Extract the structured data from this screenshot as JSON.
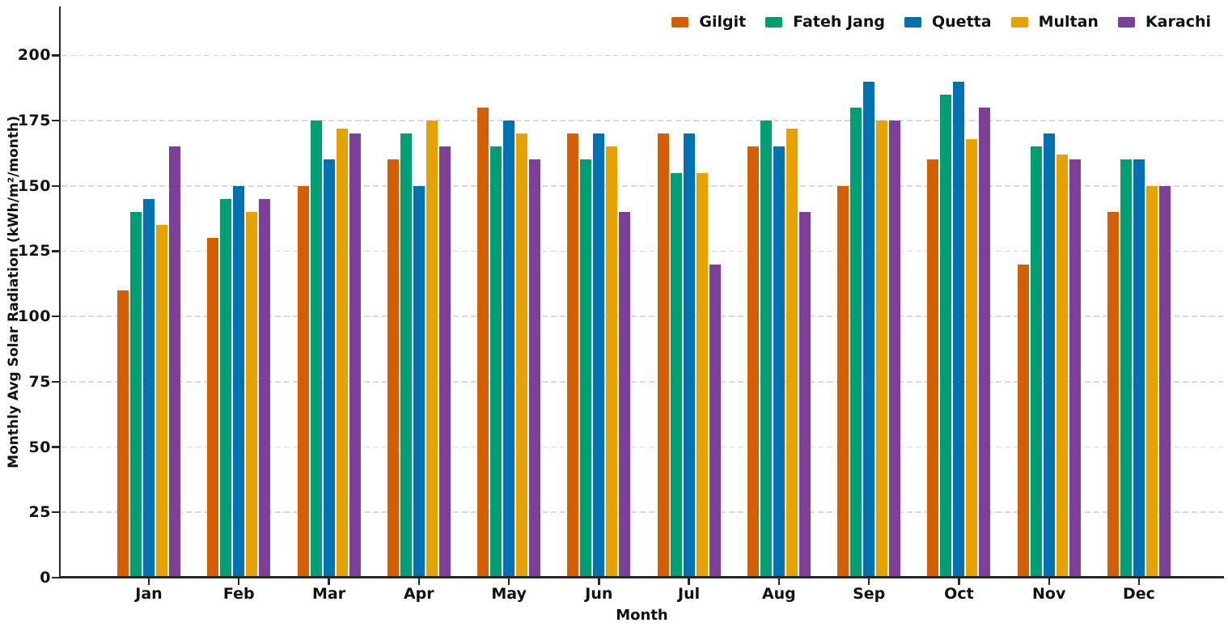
{
  "chart_data": {
    "type": "bar",
    "title": "",
    "xlabel": "Month",
    "ylabel": "Monthly Avg Solar Radiation (kWh/m²/month)",
    "categories": [
      "Jan",
      "Feb",
      "Mar",
      "Apr",
      "May",
      "Jun",
      "Jul",
      "Aug",
      "Sep",
      "Oct",
      "Nov",
      "Dec"
    ],
    "series": [
      {
        "name": "Gilgit",
        "color": "#d55e00",
        "values": [
          110,
          130,
          150,
          160,
          180,
          170,
          170,
          165,
          150,
          160,
          120,
          140
        ]
      },
      {
        "name": "Fateh Jang",
        "color": "#009e73",
        "values": [
          140,
          145,
          175,
          170,
          165,
          160,
          155,
          175,
          180,
          185,
          165,
          160
        ]
      },
      {
        "name": "Quetta",
        "color": "#0072b2",
        "values": [
          145,
          150,
          160,
          150,
          175,
          170,
          170,
          165,
          190,
          190,
          170,
          160
        ]
      },
      {
        "name": "Multan",
        "color": "#e6a200",
        "values": [
          135,
          140,
          172,
          175,
          170,
          165,
          155,
          172,
          175,
          168,
          162,
          150
        ]
      },
      {
        "name": "Karachi",
        "color": "#7d3f98",
        "values": [
          165,
          145,
          170,
          165,
          160,
          140,
          120,
          140,
          175,
          180,
          160,
          150
        ]
      }
    ],
    "yticks": [
      0,
      25,
      50,
      75,
      100,
      125,
      150,
      175,
      200
    ],
    "ylim": [
      0,
      218
    ],
    "grid": {
      "axis": "y",
      "style": "dashed",
      "color": "#d9d9d9"
    },
    "axis_color": "#262626",
    "text_color": "#111111",
    "legend_position": "top-right"
  }
}
